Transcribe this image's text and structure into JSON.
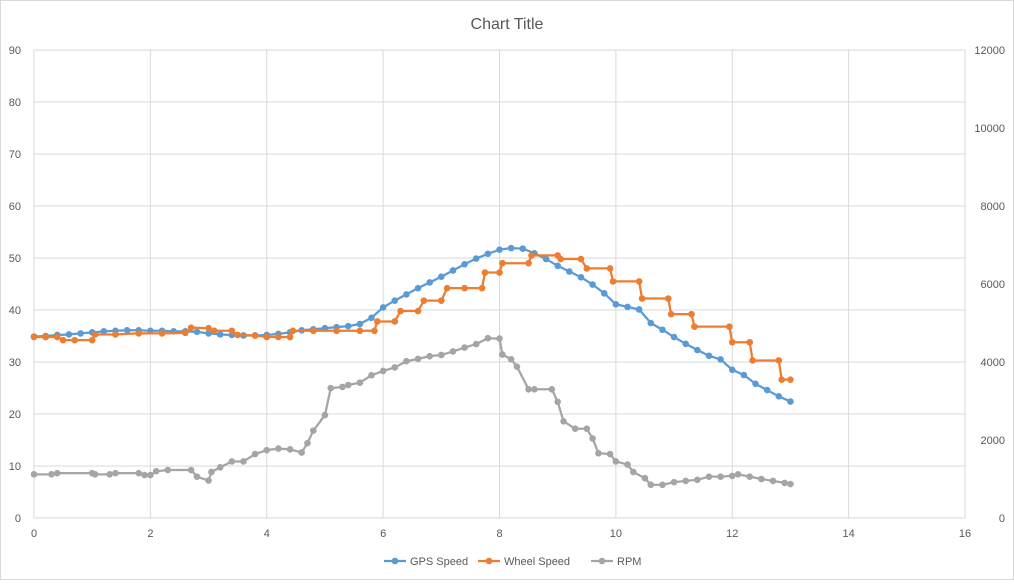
{
  "chart_data": {
    "type": "scatter",
    "title": "Chart Title",
    "xlabel": "",
    "ylabel": "",
    "xlim": [
      0,
      16
    ],
    "ylim": [
      0,
      90
    ],
    "y2lim": [
      0,
      12000
    ],
    "x_ticks": [
      0,
      2,
      4,
      6,
      8,
      10,
      12,
      14,
      16
    ],
    "y_ticks": [
      0,
      10,
      20,
      30,
      40,
      50,
      60,
      70,
      80,
      90
    ],
    "y2_ticks": [
      0,
      2000,
      4000,
      6000,
      8000,
      10000,
      12000
    ],
    "grid": true,
    "legend_position": "bottom",
    "series": [
      {
        "name": "GPS Speed",
        "color": "#5b9bd5",
        "axis": "left",
        "points": [
          [
            0,
            34.9
          ],
          [
            0.2,
            35.0
          ],
          [
            0.4,
            35.2
          ],
          [
            0.6,
            35.3
          ],
          [
            0.8,
            35.5
          ],
          [
            1.0,
            35.7
          ],
          [
            1.2,
            35.9
          ],
          [
            1.4,
            36.0
          ],
          [
            1.6,
            36.1
          ],
          [
            1.8,
            36.1
          ],
          [
            2.0,
            36.0
          ],
          [
            2.2,
            36.0
          ],
          [
            2.4,
            35.9
          ],
          [
            2.6,
            35.9
          ],
          [
            2.8,
            35.8
          ],
          [
            3.0,
            35.5
          ],
          [
            3.2,
            35.3
          ],
          [
            3.4,
            35.2
          ],
          [
            3.6,
            35.1
          ],
          [
            3.8,
            35.1
          ],
          [
            4.0,
            35.2
          ],
          [
            4.2,
            35.4
          ],
          [
            4.4,
            35.7
          ],
          [
            4.6,
            36.1
          ],
          [
            4.8,
            36.3
          ],
          [
            5.0,
            36.5
          ],
          [
            5.2,
            36.7
          ],
          [
            5.4,
            36.9
          ],
          [
            5.6,
            37.3
          ],
          [
            5.8,
            38.5
          ],
          [
            6.0,
            40.5
          ],
          [
            6.2,
            41.8
          ],
          [
            6.4,
            43.0
          ],
          [
            6.6,
            44.2
          ],
          [
            6.8,
            45.3
          ],
          [
            7.0,
            46.4
          ],
          [
            7.2,
            47.6
          ],
          [
            7.4,
            48.8
          ],
          [
            7.6,
            49.9
          ],
          [
            7.8,
            50.8
          ],
          [
            8.0,
            51.6
          ],
          [
            8.2,
            51.9
          ],
          [
            8.4,
            51.8
          ],
          [
            8.6,
            50.9
          ],
          [
            8.8,
            49.8
          ],
          [
            9.0,
            48.5
          ],
          [
            9.2,
            47.4
          ],
          [
            9.4,
            46.3
          ],
          [
            9.6,
            44.9
          ],
          [
            9.8,
            43.2
          ],
          [
            10.0,
            41.1
          ],
          [
            10.2,
            40.6
          ],
          [
            10.4,
            40.1
          ],
          [
            10.6,
            37.5
          ],
          [
            10.8,
            36.2
          ],
          [
            11.0,
            34.8
          ],
          [
            11.2,
            33.5
          ],
          [
            11.4,
            32.3
          ],
          [
            11.6,
            31.2
          ],
          [
            11.8,
            30.5
          ],
          [
            12.0,
            28.5
          ],
          [
            12.2,
            27.5
          ],
          [
            12.4,
            25.8
          ],
          [
            12.6,
            24.6
          ],
          [
            12.8,
            23.4
          ],
          [
            13.0,
            22.4
          ]
        ]
      },
      {
        "name": "Wheel Speed",
        "color": "#ed7d31",
        "axis": "left",
        "points": [
          [
            0,
            34.8
          ],
          [
            0.2,
            34.8
          ],
          [
            0.4,
            34.8
          ],
          [
            0.5,
            34.2
          ],
          [
            0.7,
            34.2
          ],
          [
            1.0,
            34.2
          ],
          [
            1.05,
            35.3
          ],
          [
            1.4,
            35.3
          ],
          [
            1.8,
            35.5
          ],
          [
            2.2,
            35.5
          ],
          [
            2.6,
            35.6
          ],
          [
            2.7,
            36.6
          ],
          [
            3.0,
            36.5
          ],
          [
            3.1,
            36.0
          ],
          [
            3.4,
            36.0
          ],
          [
            3.5,
            35.2
          ],
          [
            3.8,
            35.1
          ],
          [
            4.0,
            34.8
          ],
          [
            4.2,
            34.8
          ],
          [
            4.4,
            34.8
          ],
          [
            4.45,
            36.0
          ],
          [
            4.8,
            36.0
          ],
          [
            5.2,
            36.0
          ],
          [
            5.6,
            36.0
          ],
          [
            5.85,
            36.0
          ],
          [
            5.9,
            37.8
          ],
          [
            6.2,
            37.8
          ],
          [
            6.3,
            39.8
          ],
          [
            6.6,
            39.8
          ],
          [
            6.7,
            41.8
          ],
          [
            7.0,
            41.8
          ],
          [
            7.1,
            44.2
          ],
          [
            7.4,
            44.2
          ],
          [
            7.7,
            44.2
          ],
          [
            7.75,
            47.2
          ],
          [
            8.0,
            47.2
          ],
          [
            8.05,
            49.0
          ],
          [
            8.5,
            49.0
          ],
          [
            8.55,
            50.5
          ],
          [
            9.0,
            50.5
          ],
          [
            9.05,
            49.8
          ],
          [
            9.4,
            49.8
          ],
          [
            9.5,
            48.0
          ],
          [
            9.9,
            48.0
          ],
          [
            9.95,
            45.5
          ],
          [
            10.4,
            45.5
          ],
          [
            10.45,
            42.2
          ],
          [
            10.9,
            42.2
          ],
          [
            10.95,
            39.2
          ],
          [
            11.3,
            39.2
          ],
          [
            11.35,
            36.8
          ],
          [
            11.95,
            36.8
          ],
          [
            12.0,
            33.8
          ],
          [
            12.3,
            33.8
          ],
          [
            12.35,
            30.3
          ],
          [
            12.8,
            30.3
          ],
          [
            12.85,
            26.6
          ],
          [
            13.0,
            26.6
          ]
        ]
      },
      {
        "name": "RPM",
        "color": "#a5a5a5",
        "axis": "right",
        "points": [
          [
            0,
            1120
          ],
          [
            0.3,
            1120
          ],
          [
            0.4,
            1150
          ],
          [
            1.0,
            1150
          ],
          [
            1.05,
            1120
          ],
          [
            1.3,
            1120
          ],
          [
            1.4,
            1150
          ],
          [
            1.8,
            1150
          ],
          [
            1.9,
            1100
          ],
          [
            2.0,
            1100
          ],
          [
            2.1,
            1200
          ],
          [
            2.3,
            1230
          ],
          [
            2.7,
            1230
          ],
          [
            2.8,
            1060
          ],
          [
            3.0,
            960
          ],
          [
            3.05,
            1180
          ],
          [
            3.2,
            1300
          ],
          [
            3.4,
            1450
          ],
          [
            3.6,
            1450
          ],
          [
            3.8,
            1640
          ],
          [
            4.0,
            1740
          ],
          [
            4.2,
            1780
          ],
          [
            4.4,
            1760
          ],
          [
            4.6,
            1680
          ],
          [
            4.7,
            1920
          ],
          [
            4.8,
            2240
          ],
          [
            5.0,
            2640
          ],
          [
            5.1,
            3330
          ],
          [
            5.3,
            3360
          ],
          [
            5.4,
            3410
          ],
          [
            5.6,
            3470
          ],
          [
            5.8,
            3660
          ],
          [
            6.0,
            3770
          ],
          [
            6.2,
            3860
          ],
          [
            6.4,
            4020
          ],
          [
            6.6,
            4080
          ],
          [
            6.8,
            4150
          ],
          [
            7.0,
            4180
          ],
          [
            7.2,
            4270
          ],
          [
            7.4,
            4370
          ],
          [
            7.6,
            4460
          ],
          [
            7.8,
            4610
          ],
          [
            8.0,
            4600
          ],
          [
            8.05,
            4190
          ],
          [
            8.2,
            4070
          ],
          [
            8.3,
            3880
          ],
          [
            8.5,
            3300
          ],
          [
            8.6,
            3300
          ],
          [
            8.9,
            3300
          ],
          [
            9.0,
            2980
          ],
          [
            9.1,
            2480
          ],
          [
            9.3,
            2290
          ],
          [
            9.5,
            2290
          ],
          [
            9.6,
            2040
          ],
          [
            9.7,
            1660
          ],
          [
            9.9,
            1640
          ],
          [
            10.0,
            1450
          ],
          [
            10.2,
            1370
          ],
          [
            10.3,
            1180
          ],
          [
            10.5,
            1020
          ],
          [
            10.6,
            850
          ],
          [
            10.8,
            850
          ],
          [
            11.0,
            920
          ],
          [
            11.2,
            950
          ],
          [
            11.4,
            980
          ],
          [
            11.6,
            1060
          ],
          [
            11.8,
            1060
          ],
          [
            12.0,
            1080
          ],
          [
            12.1,
            1120
          ],
          [
            12.3,
            1060
          ],
          [
            12.5,
            1000
          ],
          [
            12.7,
            950
          ],
          [
            12.9,
            900
          ],
          [
            13.0,
            870
          ]
        ]
      }
    ]
  }
}
